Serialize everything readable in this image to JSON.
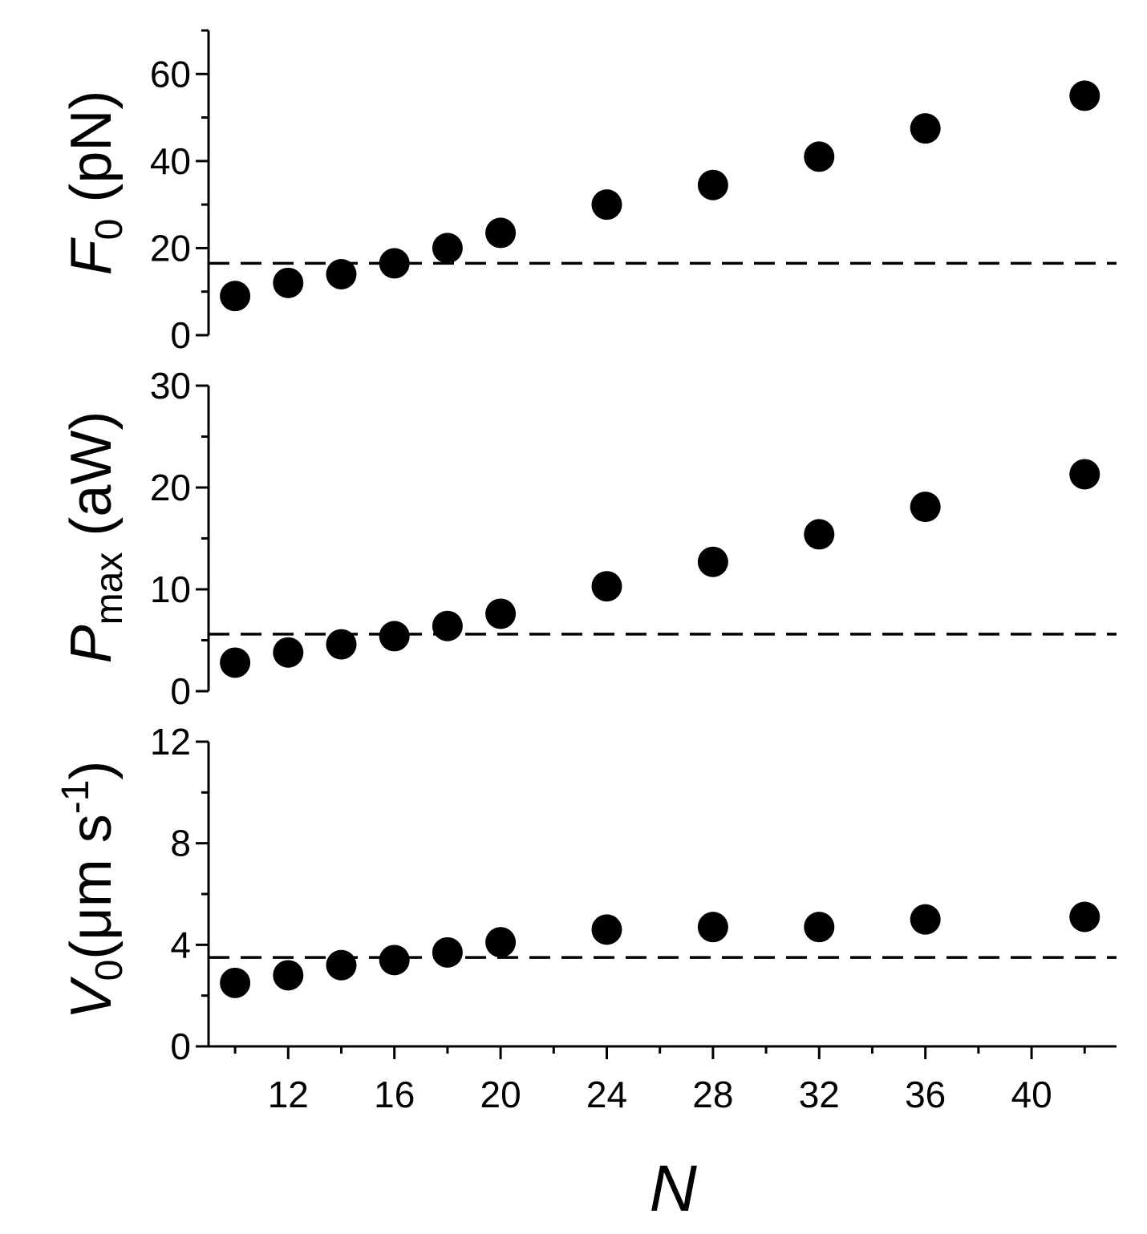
{
  "chart_data": [
    {
      "type": "scatter",
      "panel": "top",
      "ylabel": {
        "symbol": "F",
        "sub": "0",
        "unit": " (pN)"
      },
      "ylim": [
        0,
        70
      ],
      "yticks": [
        0,
        20,
        40,
        60
      ],
      "reference_line": 16.5,
      "series": [
        {
          "x": [
            10,
            12,
            14,
            16,
            18,
            20,
            24,
            28,
            32,
            36,
            42
          ],
          "y": [
            9.0,
            12.0,
            14.0,
            16.5,
            20.0,
            23.5,
            30.0,
            34.5,
            41.0,
            47.5,
            55.0
          ]
        }
      ]
    },
    {
      "type": "scatter",
      "panel": "middle",
      "ylabel": {
        "symbol": "P",
        "sub": "max",
        "unit": " (aW)"
      },
      "ylim": [
        0,
        30
      ],
      "yticks": [
        0,
        10,
        20,
        30
      ],
      "reference_line": 5.6,
      "series": [
        {
          "x": [
            10,
            12,
            14,
            16,
            18,
            20,
            24,
            28,
            32,
            36,
            42
          ],
          "y": [
            2.8,
            3.8,
            4.6,
            5.4,
            6.4,
            7.6,
            10.3,
            12.7,
            15.4,
            18.1,
            21.3
          ]
        }
      ]
    },
    {
      "type": "scatter",
      "panel": "bottom",
      "ylabel": {
        "symbol": "V",
        "sub": "0",
        "unit_pre": "(μm s",
        "unit_sup": "-1",
        "unit_post": ")"
      },
      "ylim": [
        0,
        12
      ],
      "yticks": [
        0,
        4,
        8,
        12
      ],
      "reference_line": 3.5,
      "xlabel": "N",
      "xlim": [
        9,
        43.2
      ],
      "xticks": [
        12,
        16,
        20,
        24,
        28,
        32,
        36,
        40
      ],
      "series": [
        {
          "x": [
            10,
            12,
            14,
            16,
            18,
            20,
            24,
            28,
            32,
            36,
            42
          ],
          "y": [
            2.5,
            2.8,
            3.2,
            3.4,
            3.7,
            4.1,
            4.6,
            4.7,
            4.7,
            5.0,
            5.1
          ]
        }
      ]
    }
  ]
}
